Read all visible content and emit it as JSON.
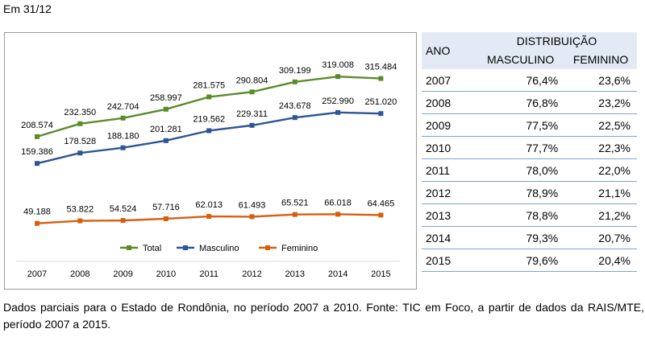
{
  "header_note": "Em 31/12",
  "chart_data": {
    "type": "line",
    "categories": [
      "2007",
      "2008",
      "2009",
      "2010",
      "2011",
      "2012",
      "2013",
      "2014",
      "2015"
    ],
    "series": [
      {
        "name": "Total",
        "color": "#5b8c2a",
        "values": [
          208574,
          232350,
          242704,
          258997,
          281575,
          290804,
          309199,
          319008,
          315484
        ],
        "labels": [
          "208.574",
          "232.350",
          "242.704",
          "258.997",
          "281.575",
          "290.804",
          "309.199",
          "319.008",
          "315.484"
        ]
      },
      {
        "name": "Masculino",
        "color": "#2f5597",
        "values": [
          159386,
          178528,
          188180,
          201281,
          219562,
          229311,
          243678,
          252990,
          251020
        ],
        "labels": [
          "159.386",
          "178.528",
          "188.180",
          "201.281",
          "219.562",
          "229.311",
          "243.678",
          "252.990",
          "251.020"
        ]
      },
      {
        "name": "Feminino",
        "color": "#d65f0e",
        "values": [
          49188,
          53822,
          54524,
          57716,
          62013,
          61493,
          65521,
          66018,
          64465
        ],
        "labels": [
          "49.188",
          "53.822",
          "54.524",
          "57.716",
          "62.013",
          "61.493",
          "65.521",
          "66.018",
          "64.465"
        ]
      }
    ],
    "legend_position": "bottom-center",
    "ylim": [
      0,
      340000
    ],
    "grid": false
  },
  "table": {
    "col_ano": "ANO",
    "col_group": "DISTRIBUIÇÃO",
    "col_masc": "MASCULINO",
    "col_fem": "FEMININO",
    "rows": [
      {
        "ano": "2007",
        "masc": "76,4%",
        "fem": "23,6%"
      },
      {
        "ano": "2008",
        "masc": "76,8%",
        "fem": "23,2%"
      },
      {
        "ano": "2009",
        "masc": "77,5%",
        "fem": "22,5%"
      },
      {
        "ano": "2010",
        "masc": "77,7%",
        "fem": "22,3%"
      },
      {
        "ano": "2011",
        "masc": "78,0%",
        "fem": "22,0%"
      },
      {
        "ano": "2012",
        "masc": "78,9%",
        "fem": "21,1%"
      },
      {
        "ano": "2013",
        "masc": "78,8%",
        "fem": "21,2%"
      },
      {
        "ano": "2014",
        "masc": "79,3%",
        "fem": "20,7%"
      },
      {
        "ano": "2015",
        "masc": "79,6%",
        "fem": "20,4%"
      }
    ]
  },
  "footer_note": "Dados parciais para o Estado de Rondônia, no período 2007 a 2010. Fonte: TIC em Foco, a partir de dados da RAIS/MTE, período 2007 a 2015."
}
